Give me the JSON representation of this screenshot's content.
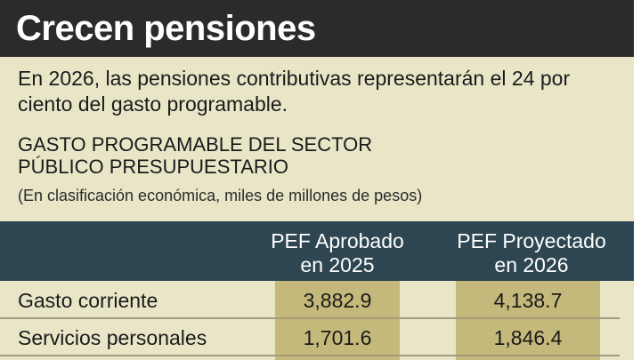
{
  "title": "Crecen pensiones",
  "intro": "En 2026, las pensiones contributivas representarán el 24 por ciento del gasto programable.",
  "chart_data": {
    "type": "table",
    "title_line1": "GASTO PROGRAMABLE DEL SECTOR",
    "title_line2": "PÚBLICO PRESUPUESTARIO",
    "subtitle": "(En clasificación económica, miles de millones de pesos)",
    "columns": [
      {
        "line1": "PEF Aprobado",
        "line2": "en 2025"
      },
      {
        "line1": "PEF Proyectado",
        "line2": "en 2026"
      }
    ],
    "rows": [
      {
        "label": "Gasto corriente",
        "values": [
          "3,882.9",
          "4,138.7"
        ]
      },
      {
        "label": "Servicios personales",
        "values": [
          "1,701.6",
          "1,846.4"
        ]
      }
    ]
  },
  "colors": {
    "panel": "#e9e6c8",
    "title_bar": "#2b2b2b",
    "table_header": "#2d4652",
    "highlight": "#c4b87a"
  }
}
